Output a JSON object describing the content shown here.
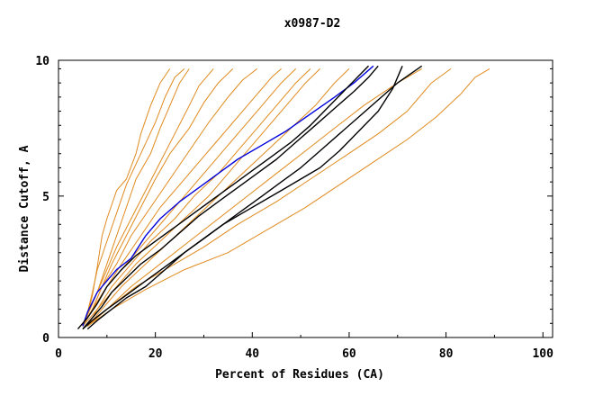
{
  "chart_data": {
    "type": "line",
    "title": "x0987-D2",
    "xlabel": "Percent of Residues (CA)",
    "ylabel": "Distance Cutoff, A",
    "xlim": [
      0,
      102
    ],
    "ylim": [
      0,
      9.8
    ],
    "x_ticks": [
      {
        "value": 0,
        "label": "0"
      },
      {
        "value": 20,
        "label": "20"
      },
      {
        "value": 40,
        "label": "40"
      },
      {
        "value": 60,
        "label": "60"
      },
      {
        "value": 80,
        "label": "80"
      },
      {
        "value": 100,
        "label": "100"
      }
    ],
    "y_ticks": [
      {
        "value": 0,
        "label": "0"
      },
      {
        "value": 5,
        "label": "5"
      },
      {
        "value": 10,
        "label": "10"
      }
    ],
    "grid": false,
    "legend": "none",
    "colors": {
      "orange": "#e08a1e",
      "blue": "#0000dd",
      "black": "#000000",
      "red": "#dd0000"
    },
    "series": [
      {
        "color": "orange",
        "points": [
          [
            5,
            0.4
          ],
          [
            6,
            0.8
          ],
          [
            7,
            1.5
          ],
          [
            8,
            2.5
          ],
          [
            9,
            3.6
          ],
          [
            10,
            4.2
          ],
          [
            12,
            5.2
          ],
          [
            14,
            5.6
          ],
          [
            16,
            6.5
          ],
          [
            17,
            7.2
          ],
          [
            19,
            8.2
          ],
          [
            21,
            9
          ],
          [
            23,
            9.5
          ]
        ]
      },
      {
        "color": "orange",
        "points": [
          [
            5,
            0.4
          ],
          [
            6,
            0.9
          ],
          [
            7,
            1.6
          ],
          [
            8,
            2.4
          ],
          [
            10,
            3.4
          ],
          [
            12,
            4.4
          ],
          [
            14,
            5.4
          ],
          [
            17,
            6.5
          ],
          [
            20,
            7.6
          ],
          [
            22,
            8.5
          ],
          [
            24,
            9.2
          ],
          [
            26,
            9.5
          ]
        ]
      },
      {
        "color": "orange",
        "points": [
          [
            5,
            0.4
          ],
          [
            6,
            0.8
          ],
          [
            8,
            1.6
          ],
          [
            10,
            2.6
          ],
          [
            12,
            3.6
          ],
          [
            14,
            4.6
          ],
          [
            16,
            5.6
          ],
          [
            19,
            6.5
          ],
          [
            21,
            7.4
          ],
          [
            23,
            8.2
          ],
          [
            25,
            9
          ],
          [
            27,
            9.5
          ]
        ]
      },
      {
        "color": "orange",
        "points": [
          [
            5,
            0.4
          ],
          [
            6,
            0.8
          ],
          [
            8,
            1.6
          ],
          [
            10,
            2.4
          ],
          [
            12,
            3.2
          ],
          [
            15,
            4.2
          ],
          [
            18,
            5.2
          ],
          [
            21,
            6.2
          ],
          [
            24,
            7.2
          ],
          [
            27,
            8.2
          ],
          [
            29,
            8.9
          ],
          [
            32,
            9.5
          ]
        ]
      },
      {
        "color": "orange",
        "points": [
          [
            5,
            0.4
          ],
          [
            7,
            1
          ],
          [
            9,
            1.8
          ],
          [
            11,
            2.6
          ],
          [
            14,
            3.6
          ],
          [
            17,
            4.6
          ],
          [
            20,
            5.6
          ],
          [
            23,
            6.5
          ],
          [
            27,
            7.4
          ],
          [
            30,
            8.3
          ],
          [
            33,
            9
          ],
          [
            36,
            9.5
          ]
        ]
      },
      {
        "color": "orange",
        "points": [
          [
            5,
            0.4
          ],
          [
            7,
            1
          ],
          [
            9,
            1.8
          ],
          [
            12,
            2.6
          ],
          [
            15,
            3.6
          ],
          [
            19,
            4.6
          ],
          [
            23,
            5.6
          ],
          [
            27,
            6.6
          ],
          [
            31,
            7.6
          ],
          [
            35,
            8.5
          ],
          [
            38,
            9.1
          ],
          [
            41,
            9.5
          ]
        ]
      },
      {
        "color": "orange",
        "points": [
          [
            5,
            0.4
          ],
          [
            7,
            1
          ],
          [
            10,
            1.8
          ],
          [
            13,
            2.6
          ],
          [
            17,
            3.6
          ],
          [
            21,
            4.6
          ],
          [
            25,
            5.4
          ],
          [
            29,
            6.2
          ],
          [
            33,
            7
          ],
          [
            37,
            7.8
          ],
          [
            41,
            8.6
          ],
          [
            44,
            9.2
          ],
          [
            46,
            9.5
          ]
        ]
      },
      {
        "color": "orange",
        "points": [
          [
            5,
            0.4
          ],
          [
            7,
            1
          ],
          [
            10,
            1.8
          ],
          [
            14,
            2.6
          ],
          [
            18,
            3.4
          ],
          [
            22,
            4.2
          ],
          [
            26,
            5
          ],
          [
            30,
            5.8
          ],
          [
            34,
            6.6
          ],
          [
            38,
            7.4
          ],
          [
            42,
            8.2
          ],
          [
            46,
            9
          ],
          [
            49,
            9.5
          ]
        ]
      },
      {
        "color": "orange",
        "points": [
          [
            5,
            0.4
          ],
          [
            8,
            1
          ],
          [
            11,
            1.8
          ],
          [
            15,
            2.6
          ],
          [
            19,
            3.4
          ],
          [
            24,
            4.2
          ],
          [
            28,
            5
          ],
          [
            33,
            5.8
          ],
          [
            37,
            6.6
          ],
          [
            41,
            7.4
          ],
          [
            45,
            8.2
          ],
          [
            49,
            9
          ],
          [
            52,
            9.5
          ]
        ]
      },
      {
        "color": "orange",
        "points": [
          [
            6,
            0.4
          ],
          [
            8,
            1
          ],
          [
            12,
            1.8
          ],
          [
            16,
            2.6
          ],
          [
            21,
            3.4
          ],
          [
            26,
            4.2
          ],
          [
            31,
            5
          ],
          [
            35,
            5.8
          ],
          [
            39,
            6.6
          ],
          [
            43,
            7.4
          ],
          [
            47,
            8.2
          ],
          [
            51,
            9
          ],
          [
            54,
            9.5
          ]
        ]
      },
      {
        "color": "orange",
        "points": [
          [
            6,
            0.4
          ],
          [
            9,
            1
          ],
          [
            13,
            1.8
          ],
          [
            18,
            2.6
          ],
          [
            23,
            3.4
          ],
          [
            28,
            4.2
          ],
          [
            33,
            5
          ],
          [
            38,
            5.8
          ],
          [
            43,
            6.6
          ],
          [
            48,
            7.4
          ],
          [
            53,
            8.2
          ],
          [
            57,
            9
          ],
          [
            60,
            9.5
          ]
        ]
      },
      {
        "color": "orange",
        "points": [
          [
            6,
            0.4
          ],
          [
            10,
            1
          ],
          [
            15,
            1.8
          ],
          [
            21,
            2.6
          ],
          [
            27,
            3.4
          ],
          [
            33,
            4.2
          ],
          [
            39,
            5
          ],
          [
            45,
            5.8
          ],
          [
            51,
            6.6
          ],
          [
            57,
            7.4
          ],
          [
            63,
            8.2
          ],
          [
            70,
            9
          ],
          [
            75,
            9.5
          ]
        ]
      },
      {
        "color": "orange",
        "points": [
          [
            6,
            0.4
          ],
          [
            10,
            1
          ],
          [
            16,
            1.8
          ],
          [
            23,
            2.5
          ],
          [
            30,
            3.2
          ],
          [
            37,
            4
          ],
          [
            45,
            4.8
          ],
          [
            52,
            5.6
          ],
          [
            59,
            6.4
          ],
          [
            66,
            7.2
          ],
          [
            72,
            8
          ],
          [
            77,
            9
          ],
          [
            81,
            9.5
          ]
        ]
      },
      {
        "color": "orange",
        "points": [
          [
            6,
            0.4
          ],
          [
            11,
            1
          ],
          [
            18,
            1.7
          ],
          [
            26,
            2.4
          ],
          [
            35,
            3
          ],
          [
            43,
            3.8
          ],
          [
            51,
            4.6
          ],
          [
            58,
            5.4
          ],
          [
            65,
            6.2
          ],
          [
            72,
            7
          ],
          [
            78,
            7.8
          ],
          [
            83,
            8.6
          ],
          [
            86,
            9.2
          ],
          [
            89,
            9.5
          ]
        ]
      },
      {
        "color": "blue",
        "points": [
          [
            5,
            0.4
          ],
          [
            6,
            0.9
          ],
          [
            8,
            1.6
          ],
          [
            10,
            2
          ],
          [
            12,
            2.4
          ],
          [
            15,
            2.8
          ],
          [
            18,
            3.6
          ],
          [
            21,
            4.2
          ],
          [
            25,
            4.8
          ],
          [
            29,
            5.3
          ],
          [
            33,
            5.8
          ],
          [
            37,
            6.3
          ],
          [
            42,
            6.8
          ],
          [
            47,
            7.3
          ],
          [
            52,
            7.9
          ],
          [
            57,
            8.5
          ],
          [
            61,
            9
          ],
          [
            65,
            9.6
          ]
        ]
      },
      {
        "color": "black",
        "points": [
          [
            4,
            0.3
          ],
          [
            6,
            0.7
          ],
          [
            8,
            1.2
          ],
          [
            10,
            1.8
          ],
          [
            13,
            2.4
          ],
          [
            16,
            2.9
          ],
          [
            20,
            3.4
          ],
          [
            24,
            3.9
          ],
          [
            28,
            4.4
          ],
          [
            32,
            4.9
          ],
          [
            36,
            5.4
          ],
          [
            40,
            5.9
          ],
          [
            44,
            6.4
          ],
          [
            48,
            6.9
          ],
          [
            52,
            7.5
          ],
          [
            56,
            8.2
          ],
          [
            60,
            8.9
          ],
          [
            64,
            9.6
          ]
        ]
      },
      {
        "color": "black",
        "points": [
          [
            5,
            0.3
          ],
          [
            7,
            0.7
          ],
          [
            9,
            1.1
          ],
          [
            11,
            1.6
          ],
          [
            14,
            2.1
          ],
          [
            17,
            2.6
          ],
          [
            21,
            3.1
          ],
          [
            25,
            3.7
          ],
          [
            29,
            4.3
          ],
          [
            33,
            4.8
          ],
          [
            37,
            5.3
          ],
          [
            41,
            5.8
          ],
          [
            45,
            6.3
          ],
          [
            49,
            6.9
          ],
          [
            53,
            7.5
          ],
          [
            57,
            8.1
          ],
          [
            61,
            8.7
          ],
          [
            64,
            9.2
          ],
          [
            66,
            9.6
          ]
        ]
      },
      {
        "color": "black",
        "points": [
          [
            5,
            0.3
          ],
          [
            7,
            0.6
          ],
          [
            10,
            1
          ],
          [
            14,
            1.5
          ],
          [
            18,
            2
          ],
          [
            22,
            2.5
          ],
          [
            26,
            3
          ],
          [
            30,
            3.5
          ],
          [
            34,
            4
          ],
          [
            38,
            4.5
          ],
          [
            42,
            5
          ],
          [
            46,
            5.5
          ],
          [
            50,
            6
          ],
          [
            54,
            6.6
          ],
          [
            58,
            7.2
          ],
          [
            62,
            7.8
          ],
          [
            66,
            8.4
          ],
          [
            70,
            9
          ],
          [
            75,
            9.6
          ]
        ]
      },
      {
        "color": "black",
        "points": [
          [
            6,
            0.3
          ],
          [
            8,
            0.6
          ],
          [
            11,
            1
          ],
          [
            14,
            1.4
          ],
          [
            18,
            1.8
          ],
          [
            22,
            2.4
          ],
          [
            26,
            3
          ],
          [
            30,
            3.5
          ],
          [
            34,
            4
          ],
          [
            38,
            4.4
          ],
          [
            42,
            4.8
          ],
          [
            46,
            5.2
          ],
          [
            50,
            5.6
          ],
          [
            54,
            6
          ],
          [
            58,
            6.6
          ],
          [
            62,
            7.3
          ],
          [
            66,
            8
          ],
          [
            69,
            8.8
          ],
          [
            71,
            9.6
          ]
        ]
      }
    ]
  }
}
